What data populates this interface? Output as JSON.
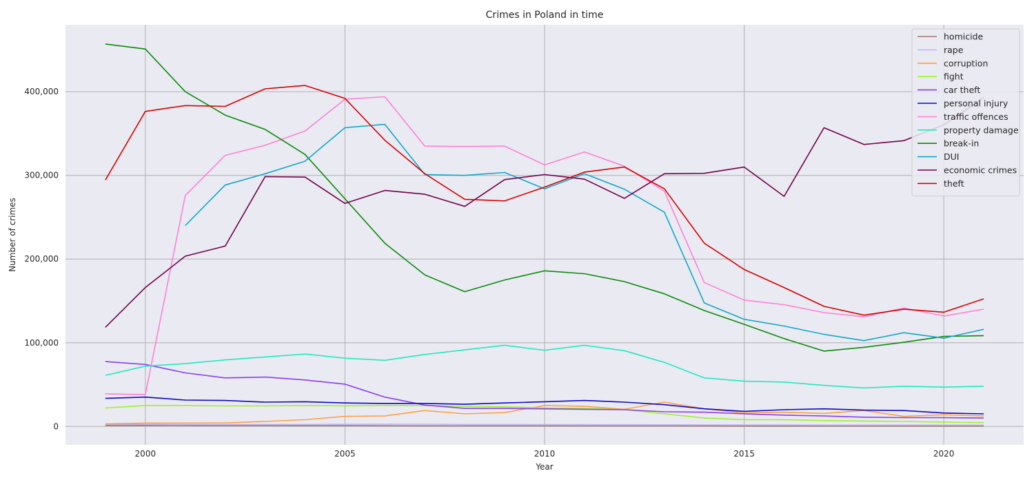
{
  "chart_data": {
    "type": "line",
    "title": "Crimes in Poland in time",
    "xlabel": "Year",
    "ylabel": "Number of crimes",
    "xlim": [
      1998,
      2022
    ],
    "ylim": [
      -22000,
      480000
    ],
    "x_ticks": [
      2000,
      2005,
      2010,
      2015,
      2020
    ],
    "y_ticks": [
      0,
      100000,
      200000,
      300000,
      400000
    ],
    "y_tick_labels": [
      "0",
      "100,000",
      "200,000",
      "300,000",
      "400,000"
    ],
    "grid": true,
    "legend_position": "top-right",
    "series": [
      {
        "name": "homicide",
        "color": "#a1786a",
        "x": [
          1999,
          2000,
          2001,
          2002,
          2003,
          2004,
          2005,
          2006,
          2007,
          2008,
          2009,
          2010,
          2011,
          2012,
          2013,
          2014,
          2015,
          2016,
          2017,
          2018,
          2019,
          2020,
          2021
        ],
        "y": [
          1100,
          1200,
          1100,
          1000,
          1000,
          900,
          850,
          800,
          750,
          700,
          700,
          700,
          650,
          650,
          600,
          550,
          500,
          500,
          500,
          500,
          500,
          500,
          500
        ]
      },
      {
        "name": "rape",
        "color": "#c0b6f6",
        "x": [
          1999,
          2000,
          2001,
          2002,
          2003,
          2004,
          2005,
          2006,
          2007,
          2008,
          2009,
          2010,
          2011,
          2012,
          2013,
          2014,
          2015,
          2016,
          2017,
          2018,
          2019,
          2020,
          2021
        ],
        "y": [
          2500,
          2500,
          2300,
          2300,
          2400,
          2400,
          2500,
          2600,
          2700,
          2400,
          2400,
          2300,
          2200,
          2100,
          2000,
          1900,
          1800,
          1700,
          1600,
          1600,
          1600,
          1600,
          1600
        ]
      },
      {
        "name": "corruption",
        "color": "#ff9f40",
        "x": [
          1999,
          2000,
          2001,
          2002,
          2003,
          2004,
          2005,
          2006,
          2007,
          2008,
          2009,
          2010,
          2011,
          2012,
          2013,
          2014,
          2015,
          2016,
          2017,
          2018,
          2019,
          2020,
          2021
        ],
        "y": [
          3000,
          4000,
          4000,
          4200,
          6000,
          8000,
          12000,
          12500,
          19000,
          15000,
          16500,
          25000,
          24000,
          20500,
          29000,
          21000,
          16000,
          17000,
          15500,
          19000,
          12000,
          14000,
          12500
        ]
      },
      {
        "name": "fight",
        "color": "#9cf224",
        "x": [
          1999,
          2000,
          2001,
          2002,
          2003,
          2004,
          2005,
          2006,
          2007,
          2008,
          2009,
          2010,
          2011,
          2012,
          2013,
          2014,
          2015,
          2016,
          2017,
          2018,
          2019,
          2020,
          2021
        ],
        "y": [
          22000,
          25000,
          25000,
          24500,
          24500,
          25000,
          24500,
          25000,
          25000,
          24000,
          23500,
          22000,
          21500,
          20000,
          15000,
          10000,
          8000,
          8000,
          7000,
          6500,
          6000,
          5000,
          4500
        ]
      },
      {
        "name": "car theft",
        "color": "#8b3cf3",
        "x": [
          1999,
          2000,
          2001,
          2002,
          2003,
          2004,
          2005,
          2006,
          2007,
          2008,
          2009,
          2010,
          2011,
          2012,
          2013,
          2014,
          2015,
          2016,
          2017,
          2018,
          2019,
          2020,
          2021
        ],
        "y": [
          77500,
          74000,
          64000,
          58000,
          59000,
          55500,
          50500,
          35000,
          25500,
          21500,
          21500,
          21000,
          20500,
          20000,
          17500,
          17000,
          15000,
          13500,
          12500,
          11000,
          10500,
          10500,
          10000
        ]
      },
      {
        "name": "personal injury",
        "color": "#0b06c8",
        "x": [
          1999,
          2000,
          2001,
          2002,
          2003,
          2004,
          2005,
          2006,
          2007,
          2008,
          2009,
          2010,
          2011,
          2012,
          2013,
          2014,
          2015,
          2016,
          2017,
          2018,
          2019,
          2020,
          2021
        ],
        "y": [
          33500,
          35000,
          31500,
          31000,
          29000,
          29500,
          28000,
          27500,
          27500,
          26500,
          28000,
          29500,
          31000,
          29000,
          26000,
          21000,
          18000,
          20000,
          21000,
          19500,
          19000,
          16000,
          15000
        ]
      },
      {
        "name": "traffic offences",
        "color": "#ff7fd6",
        "x": [
          1999,
          2000,
          2001,
          2002,
          2003,
          2004,
          2005,
          2006,
          2007,
          2008,
          2009,
          2010,
          2011,
          2012,
          2013,
          2014,
          2015,
          2016,
          2017,
          2018,
          2019,
          2020,
          2021
        ],
        "y": [
          39000,
          38000,
          276000,
          324000,
          336000,
          353000,
          391000,
          394000,
          335000,
          334500,
          335000,
          312500,
          328000,
          311000,
          281000,
          172000,
          151000,
          145500,
          136000,
          131000,
          141500,
          132000,
          140000
        ]
      },
      {
        "name": "property damage",
        "color": "#1ee9c0",
        "x": [
          1999,
          2000,
          2001,
          2002,
          2003,
          2004,
          2005,
          2006,
          2007,
          2008,
          2009,
          2010,
          2011,
          2012,
          2013,
          2014,
          2015,
          2016,
          2017,
          2018,
          2019,
          2020,
          2021
        ],
        "y": [
          61000,
          72000,
          75000,
          79500,
          83000,
          86500,
          81500,
          79000,
          86000,
          91500,
          97000,
          91000,
          97000,
          90500,
          76500,
          58000,
          54000,
          53000,
          49000,
          46000,
          48000,
          47000,
          48000
        ]
      },
      {
        "name": "break-in",
        "color": "#0a8a0a",
        "x": [
          1999,
          2000,
          2001,
          2002,
          2003,
          2004,
          2005,
          2006,
          2007,
          2008,
          2009,
          2010,
          2011,
          2012,
          2013,
          2014,
          2015,
          2016,
          2017,
          2018,
          2019,
          2020,
          2021
        ],
        "y": [
          457000,
          451000,
          400000,
          372000,
          355000,
          325000,
          272000,
          219000,
          181000,
          161000,
          175000,
          186000,
          182500,
          173000,
          158500,
          138500,
          122000,
          105000,
          90000,
          94500,
          100500,
          107500,
          108500
        ]
      },
      {
        "name": "DUI",
        "color": "#10a8c8",
        "x": [
          2001,
          2002,
          2003,
          2004,
          2005,
          2006,
          2007,
          2008,
          2009,
          2010,
          2011,
          2012,
          2013,
          2014,
          2015,
          2016,
          2017,
          2018,
          2019,
          2020,
          2021
        ],
        "y": [
          240000,
          288500,
          302000,
          317000,
          357000,
          361000,
          301000,
          300000,
          303500,
          284000,
          302000,
          283500,
          256000,
          147500,
          128000,
          120000,
          110000,
          102500,
          112000,
          105500,
          116000
        ]
      },
      {
        "name": "economic crimes",
        "color": "#70004a",
        "x": [
          1999,
          2000,
          2001,
          2002,
          2003,
          2004,
          2005,
          2006,
          2007,
          2008,
          2009,
          2010,
          2011,
          2012,
          2013,
          2014,
          2015,
          2016,
          2017,
          2018,
          2019,
          2020,
          2021
        ],
        "y": [
          118500,
          166000,
          203500,
          215500,
          298500,
          298000,
          266500,
          282000,
          277500,
          263000,
          295000,
          301000,
          295500,
          272500,
          302000,
          302500,
          310000,
          275000,
          357000,
          337000,
          341500,
          360500,
          393000
        ]
      },
      {
        "name": "theft",
        "color": "#d40000",
        "x": [
          1999,
          2000,
          2001,
          2002,
          2003,
          2004,
          2005,
          2006,
          2007,
          2008,
          2009,
          2010,
          2011,
          2012,
          2013,
          2014,
          2015,
          2016,
          2017,
          2018,
          2019,
          2020,
          2021
        ],
        "y": [
          294500,
          376500,
          383500,
          382500,
          403500,
          407500,
          392000,
          342000,
          302000,
          271500,
          269500,
          286000,
          304000,
          310000,
          284000,
          219000,
          187500,
          166000,
          143500,
          133000,
          140000,
          136500,
          152500
        ]
      }
    ]
  }
}
